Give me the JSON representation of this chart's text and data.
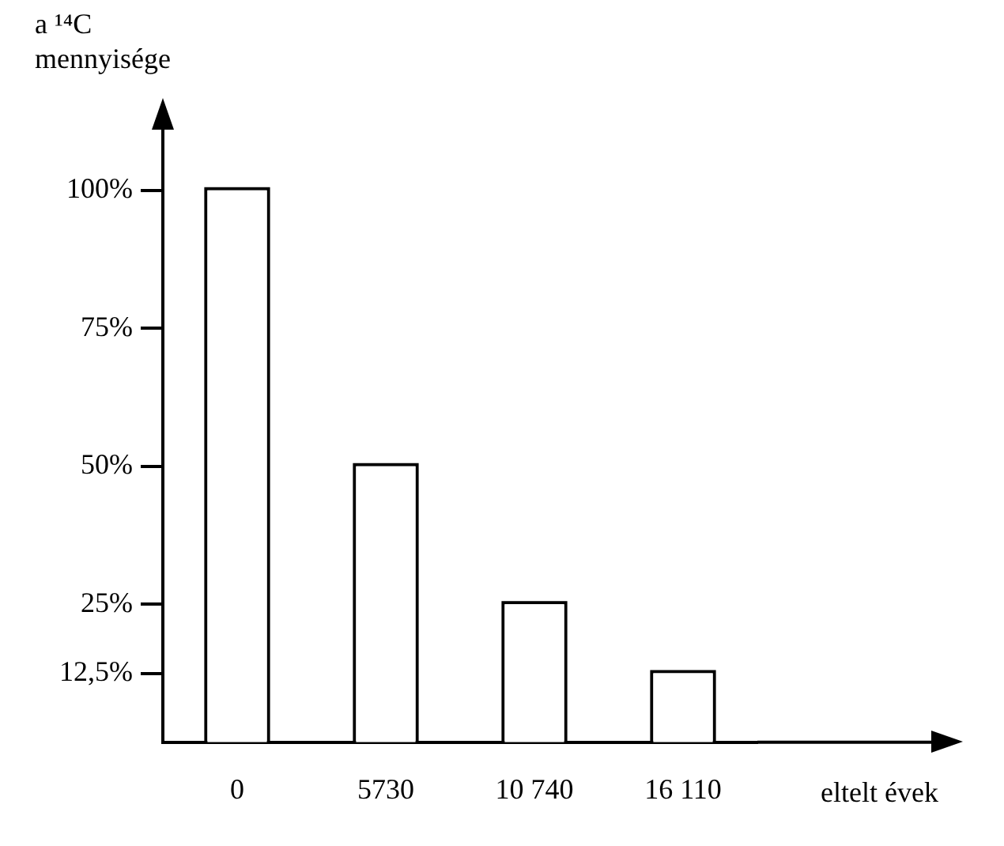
{
  "chart_data": {
    "type": "bar",
    "ylabel": "a ¹⁴C mennyisége",
    "xlabel": "eltelt évek",
    "categories": [
      "0",
      "5730",
      "10 740",
      "16 110"
    ],
    "values": [
      100,
      50,
      25,
      12.5
    ],
    "color": "#ffffff",
    "ylim": [
      0,
      111
    ],
    "yticks": [
      {
        "value": 12.5,
        "label": "12,5%"
      },
      {
        "value": 25,
        "label": "25%"
      },
      {
        "value": 50,
        "label": "50%"
      },
      {
        "value": 75,
        "label": "75%"
      },
      {
        "value": 100,
        "label": "100%"
      }
    ],
    "grid": false
  }
}
